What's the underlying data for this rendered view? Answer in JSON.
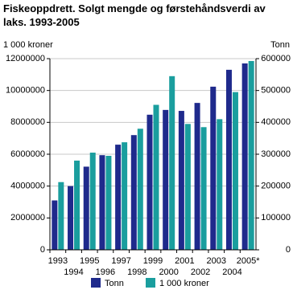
{
  "chart_data": {
    "type": "bar",
    "title": "Fiskeoppdrett. Solgt mengde og førstehåndsverdi av laks. 1993-2005",
    "ylabel": "1 000 kroner",
    "y2label": "Tonn",
    "categories": [
      "1993",
      "1994",
      "1995",
      "1996",
      "1997",
      "1998",
      "1999",
      "2000",
      "2001",
      "2002",
      "2003",
      "2004",
      "2005*"
    ],
    "series": [
      {
        "name": "Tonn",
        "color": "#1f2a8c",
        "axis": "y2",
        "values": [
          155000,
          200000,
          261000,
          297000,
          330000,
          360000,
          424000,
          439000,
          436000,
          461000,
          512000,
          565000,
          585000
        ]
      },
      {
        "name": "1 000 kroner",
        "color": "#1a9e9e",
        "values": [
          4250000,
          5600000,
          6100000,
          5900000,
          6750000,
          7600000,
          9100000,
          10900000,
          7900000,
          7700000,
          8200000,
          9900000,
          11850000
        ]
      }
    ],
    "ylim": [
      0,
      12000000
    ],
    "yticks": [
      0,
      2000000,
      4000000,
      6000000,
      8000000,
      10000000,
      12000000
    ],
    "y2lim": [
      0,
      600000
    ],
    "y2ticks": [
      0,
      100000,
      200000,
      300000,
      400000,
      500000,
      600000
    ],
    "grid": true
  }
}
